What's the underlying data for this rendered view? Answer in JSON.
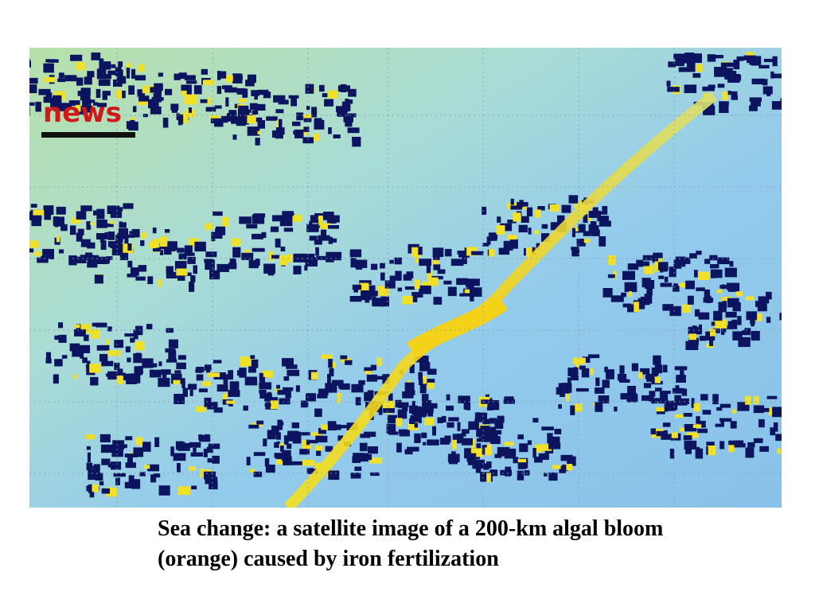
{
  "image": {
    "logo": "news"
  },
  "caption": {
    "lines": [
      "Sea change: a satellite image of a 200-km algal bloom",
      "(orange) caused by iron fertilization"
    ]
  }
}
